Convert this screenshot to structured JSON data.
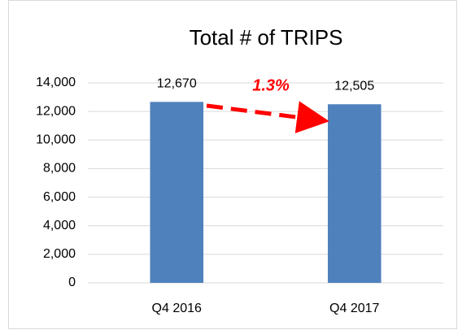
{
  "chart_data": {
    "type": "bar",
    "title": "Total # of TRIPS",
    "categories": [
      "Q4 2016",
      "Q4 2017"
    ],
    "values": [
      12670,
      12505
    ],
    "value_labels": [
      "12,670",
      "12,505"
    ],
    "color": "#4f81bd",
    "annotation": "1.3%",
    "ylim": [
      0,
      14000
    ],
    "yticks": [
      0,
      {
        "value": 2000,
        "label": "2,000"
      },
      {
        "value": 4000,
        "label": "4,000"
      },
      {
        "value": 6000,
        "label": "6,000"
      },
      {
        "value": 8000,
        "label": "8,000"
      },
      {
        "value": 10000,
        "label": "10,000"
      },
      {
        "value": 12000,
        "label": "12,000"
      },
      {
        "value": 14000,
        "label": "14,000"
      }
    ],
    "grid": true
  }
}
